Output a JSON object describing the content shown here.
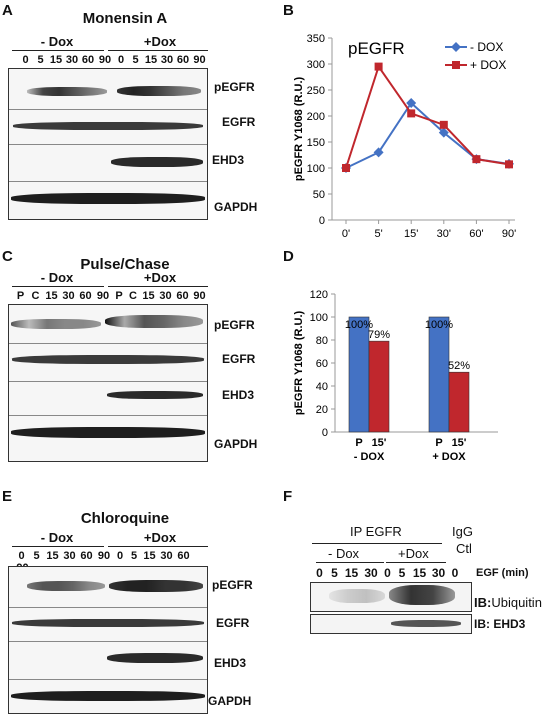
{
  "panels": {
    "A": {
      "letter": "A",
      "title": "Monensin A",
      "groups": [
        "- Dox",
        "+Dox"
      ],
      "times": [
        "0",
        "5",
        "15",
        "30",
        "60",
        "90",
        "0",
        "5",
        "15",
        "30",
        "60",
        "90"
      ],
      "blots": [
        "pEGFR",
        "EGFR",
        "EHD3",
        "GAPDH"
      ]
    },
    "B": {
      "letter": "B"
    },
    "C": {
      "letter": "C",
      "title": "Pulse/Chase",
      "groups": [
        "- Dox",
        "+Dox"
      ],
      "times": [
        "P",
        "C",
        "15",
        "30",
        "60",
        "90",
        "P",
        "C",
        "15",
        "30",
        "60",
        "90"
      ],
      "blots": [
        "pEGFR",
        "EGFR",
        "EHD3",
        "GAPDH"
      ]
    },
    "D": {
      "letter": "D"
    },
    "E": {
      "letter": "E",
      "title": "Chloroquine",
      "groups": [
        "- Dox",
        "+Dox"
      ],
      "times": [
        "0",
        "5",
        "15",
        "30",
        "60",
        "90",
        "0",
        "5",
        "15",
        "30",
        "60",
        "90"
      ],
      "blots": [
        "pEGFR",
        "EGFR",
        "EHD3",
        "GAPDH"
      ]
    },
    "F": {
      "letter": "F",
      "ip_label": "IP EGFR",
      "igg_label": "IgG",
      "ctl_label": "Ctl",
      "groups": [
        "- Dox",
        "+Dox"
      ],
      "times": [
        "0",
        "5",
        "15",
        "30",
        "0",
        "5",
        "15",
        "30",
        "0"
      ],
      "egf_label": "EGF (min)",
      "ib1_prefix": "IB:",
      "ib1_target": "Ubiquitin",
      "ib2": "IB: EHD3"
    }
  },
  "chart_data": [
    {
      "type": "line",
      "title": "pEGFR",
      "ylabel": "pEGFR Y1068 (R.U.)",
      "xlabel": "",
      "categories": [
        "0'",
        "5'",
        "15'",
        "30'",
        "60'",
        "90'"
      ],
      "ylim": [
        0,
        350
      ],
      "yticks": [
        "0",
        "50",
        "100",
        "150",
        "200",
        "250",
        "300",
        "350"
      ],
      "series": [
        {
          "name": "- DOX",
          "color": "#4472c4",
          "marker": "diamond",
          "values": [
            100,
            130,
            225,
            168,
            117,
            108
          ]
        },
        {
          "name": "+ DOX",
          "color": "#c0272d",
          "marker": "square",
          "values": [
            100,
            295,
            205,
            183,
            117,
            107
          ]
        }
      ],
      "legend": "top-right",
      "grid": false
    },
    {
      "type": "bar",
      "ylabel": "pEGFR Y1068 (R.U.)",
      "ylim": [
        0,
        120
      ],
      "yticks": [
        "0",
        "20",
        "40",
        "60",
        "80",
        "100",
        "120"
      ],
      "bars": [
        {
          "label": "P",
          "group": "- DOX",
          "value": 100,
          "data_label": "100%",
          "color": "#4472c4"
        },
        {
          "label": "15'",
          "group": "- DOX",
          "value": 79,
          "data_label": "79%",
          "color": "#c0272d"
        },
        {
          "label": "P",
          "group": "+ DOX",
          "value": 100,
          "data_label": "100%",
          "color": "#4472c4"
        },
        {
          "label": "15'",
          "group": "+ DOX",
          "value": 52,
          "data_label": "52%",
          "color": "#c0272d"
        }
      ],
      "group_labels": [
        "- DOX",
        "+ DOX"
      ],
      "grid": false
    }
  ]
}
